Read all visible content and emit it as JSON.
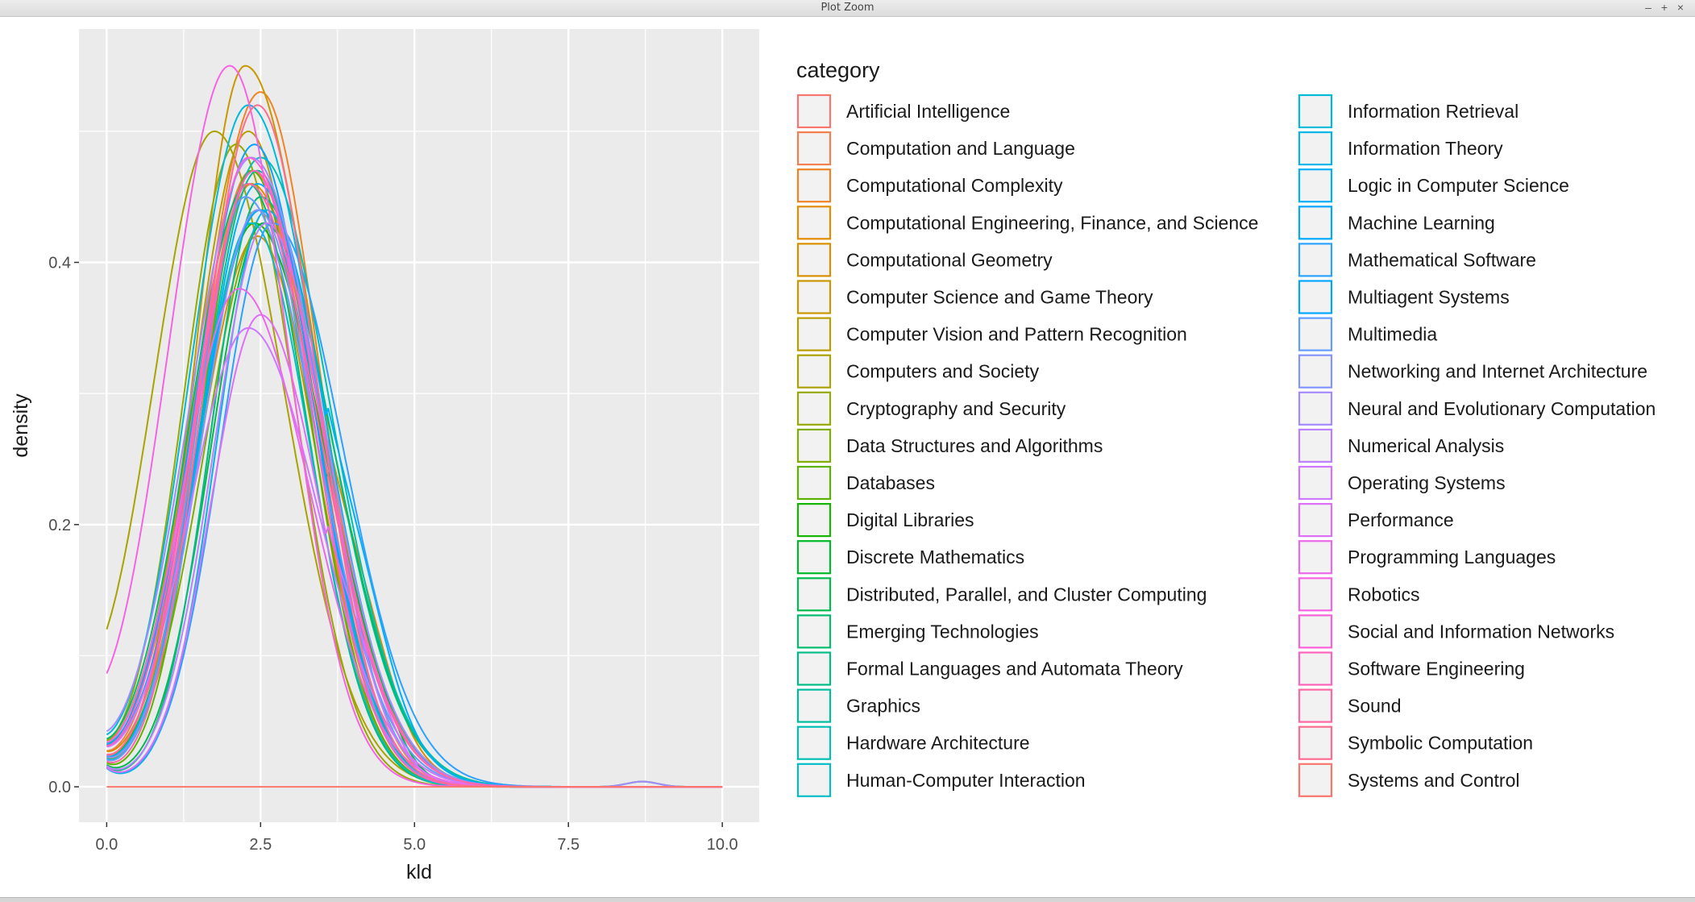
{
  "window": {
    "title": "Plot Zoom",
    "minimize_glyph": "–",
    "maximize_glyph": "+",
    "close_glyph": "×"
  },
  "theme": {
    "panel_bg": "#EBEBEB",
    "grid_major": "#FFFFFF",
    "text": "#1A1A1A",
    "axis_text": "#4D4D4D",
    "legend_key_bg": "#F2F2F2"
  },
  "chart_data": {
    "type": "density",
    "xlabel": "kld",
    "ylabel": "density",
    "xlim": [
      -0.45,
      10.6
    ],
    "ylim": [
      -0.027,
      0.578
    ],
    "x_ticks": [
      0.0,
      2.5,
      5.0,
      7.5,
      10.0
    ],
    "x_tick_labels": [
      "0.0",
      "2.5",
      "5.0",
      "7.5",
      "10.0"
    ],
    "y_ticks": [
      0.0,
      0.2,
      0.4
    ],
    "y_tick_labels": [
      "0.0",
      "0.2",
      "0.4"
    ],
    "legend_title": "category",
    "legend_position": "right",
    "series": [
      {
        "name": "Artificial Intelligence",
        "color": "#F8766D",
        "peak_x": 2.5,
        "peak_y": 0.45
      },
      {
        "name": "Computation and Language",
        "color": "#F47F4E",
        "peak_x": 2.35,
        "peak_y": 0.47
      },
      {
        "name": "Computational Complexity",
        "color": "#EE8426",
        "peak_x": 2.5,
        "peak_y": 0.53
      },
      {
        "name": "Computational Engineering, Finance, and Science",
        "color": "#E48B00",
        "peak_x": 2.35,
        "peak_y": 0.46
      },
      {
        "name": "Computational Geometry",
        "color": "#D89000",
        "peak_x": 2.45,
        "peak_y": 0.42
      },
      {
        "name": "Computer Science and Game Theory",
        "color": "#C99800",
        "peak_x": 2.25,
        "peak_y": 0.55
      },
      {
        "name": "Computer Vision and Pattern Recognition",
        "color": "#BA9E00",
        "peak_x": 2.3,
        "peak_y": 0.5
      },
      {
        "name": "Computers and Society",
        "color": "#AAA200",
        "peak_x": 1.75,
        "peak_y": 0.5
      },
      {
        "name": "Cryptography and Security",
        "color": "#97A800",
        "peak_x": 2.1,
        "peak_y": 0.49
      },
      {
        "name": "Data Structures and Algorithms",
        "color": "#7FAE00",
        "peak_x": 2.55,
        "peak_y": 0.43
      },
      {
        "name": "Databases",
        "color": "#5BB300",
        "peak_x": 2.35,
        "peak_y": 0.47
      },
      {
        "name": "Digital Libraries",
        "color": "#14B600",
        "peak_x": 2.4,
        "peak_y": 0.43
      },
      {
        "name": "Discrete Mathematics",
        "color": "#00B92A",
        "peak_x": 2.5,
        "peak_y": 0.44
      },
      {
        "name": "Distributed, Parallel, and Cluster Computing",
        "color": "#00BB4D",
        "peak_x": 2.55,
        "peak_y": 0.43
      },
      {
        "name": "Emerging Technologies",
        "color": "#00BC6B",
        "peak_x": 2.3,
        "peak_y": 0.46
      },
      {
        "name": "Formal Languages and Automata Theory",
        "color": "#00BD86",
        "peak_x": 2.5,
        "peak_y": 0.45
      },
      {
        "name": "Graphics",
        "color": "#00BE9D",
        "peak_x": 2.45,
        "peak_y": 0.47
      },
      {
        "name": "Hardware Architecture",
        "color": "#00BFB4",
        "peak_x": 2.5,
        "peak_y": 0.48
      },
      {
        "name": "Human-Computer Interaction",
        "color": "#00BDC8",
        "peak_x": 2.35,
        "peak_y": 0.43
      },
      {
        "name": "Information Retrieval",
        "color": "#00BAD9",
        "peak_x": 2.3,
        "peak_y": 0.52
      },
      {
        "name": "Information Theory",
        "color": "#00B5E8",
        "peak_x": 2.6,
        "peak_y": 0.44
      },
      {
        "name": "Logic in Computer Science",
        "color": "#00B0F6",
        "peak_x": 2.45,
        "peak_y": 0.46
      },
      {
        "name": "Machine Learning",
        "color": "#00A8FF",
        "peak_x": 2.5,
        "peak_y": 0.44
      },
      {
        "name": "Mathematical Software",
        "color": "#2CA1FF",
        "peak_x": 2.7,
        "peak_y": 0.43
      },
      {
        "name": "Multiagent Systems",
        "color": "#00A5FF",
        "peak_x": 2.4,
        "peak_y": 0.49
      },
      {
        "name": "Multimedia",
        "color": "#619CFF",
        "peak_x": 2.25,
        "peak_y": 0.45
      },
      {
        "name": "Networking and Internet Architecture",
        "color": "#8494FF",
        "peak_x": 2.45,
        "peak_y": 0.44
      },
      {
        "name": "Neural and Evolutionary Computation",
        "color": "#A58AFF",
        "peak_x": 2.35,
        "peak_y": 0.48
      },
      {
        "name": "Numerical Analysis",
        "color": "#BB81FF",
        "peak_x": 2.6,
        "peak_y": 0.43
      },
      {
        "name": "Operating Systems",
        "color": "#CF78FF",
        "peak_x": 2.3,
        "peak_y": 0.35
      },
      {
        "name": "Performance",
        "color": "#DE70F5",
        "peak_x": 2.5,
        "peak_y": 0.36
      },
      {
        "name": "Programming Languages",
        "color": "#EA6AE8",
        "peak_x": 2.15,
        "peak_y": 0.38
      },
      {
        "name": "Robotics",
        "color": "#F564E3",
        "peak_x": 2.0,
        "peak_y": 0.55
      },
      {
        "name": "Social and Information Networks",
        "color": "#FB61D7",
        "peak_x": 2.3,
        "peak_y": 0.48
      },
      {
        "name": "Software Engineering",
        "color": "#FF62BC",
        "peak_x": 2.4,
        "peak_y": 0.47
      },
      {
        "name": "Sound",
        "color": "#FF67A4",
        "peak_x": 2.3,
        "peak_y": 0.46
      },
      {
        "name": "Symbolic Computation",
        "color": "#FF6C91",
        "peak_x": 2.45,
        "peak_y": 0.52
      },
      {
        "name": "Systems and Control",
        "color": "#F8766D",
        "peak_x": 2.4,
        "peak_y": 0.0
      }
    ]
  }
}
